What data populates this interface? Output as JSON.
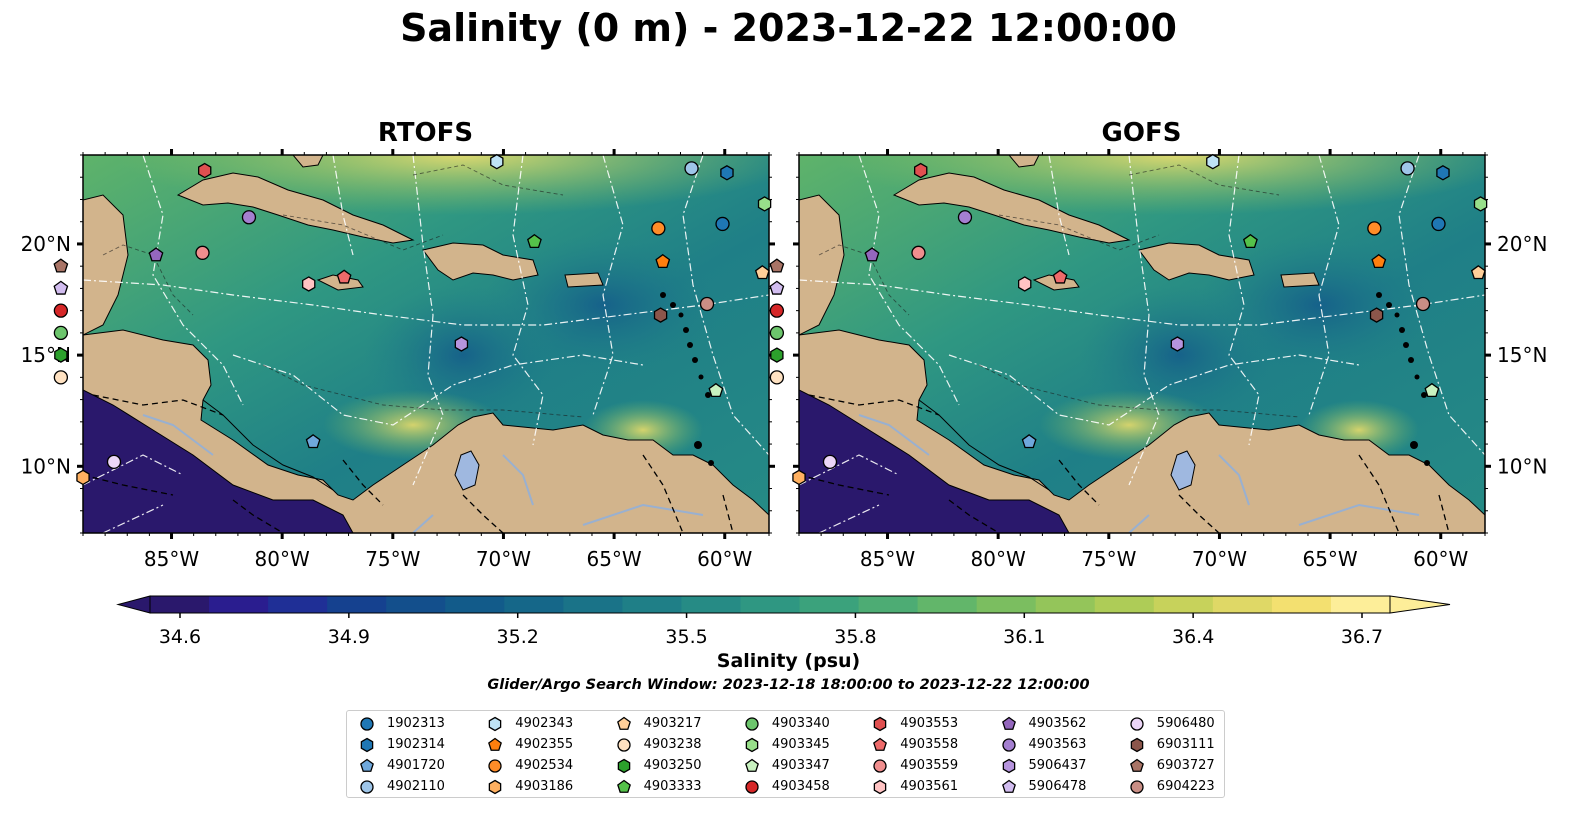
{
  "title": "Salinity (0 m) - 2023-12-22 12:00:00",
  "panels": [
    {
      "title": "RTOFS"
    },
    {
      "title": "GOFS"
    }
  ],
  "axes": {
    "lon_ticks": [
      -85,
      -80,
      -75,
      -70,
      -65,
      -60
    ],
    "lon_tick_labels": [
      "85°W",
      "80°W",
      "75°W",
      "70°W",
      "65°W",
      "60°W"
    ],
    "lat_ticks": [
      10,
      15,
      20
    ],
    "lat_tick_labels": [
      "10°N",
      "15°N",
      "20°N"
    ],
    "lon_range": [
      -89,
      -58
    ],
    "lat_range": [
      7,
      24
    ]
  },
  "colorbar": {
    "label": "Salinity (psu)",
    "ticks": [
      "34.6",
      "34.9",
      "35.2",
      "35.5",
      "35.8",
      "36.1",
      "36.4",
      "36.7"
    ],
    "range": [
      34.6,
      36.7
    ],
    "extend": "both",
    "colormap": "haline",
    "colors": [
      "#2a186c",
      "#2a1d8f",
      "#1f2f96",
      "#15418f",
      "#134f8c",
      "#125b8a",
      "#156789",
      "#1a7388",
      "#1f7f87",
      "#268b85",
      "#2f9782",
      "#3ba27c",
      "#4dac74",
      "#62b66a",
      "#7bbe60",
      "#94c55a",
      "#aecc57",
      "#c7d25b",
      "#dfd866",
      "#f3e070",
      "#fdee99"
    ]
  },
  "search_window": "Glider/Argo Search Window: 2023-12-18 18:00:00 to 2023-12-22 12:00:00",
  "chart_data": {
    "type": "map",
    "variable": "Salinity",
    "depth": "0 m",
    "units": "psu",
    "floats": [
      {
        "id": "1902313",
        "marker": "circle",
        "color": "#1f77b4",
        "lon": -60.1,
        "lat": 20.9
      },
      {
        "id": "1902314",
        "marker": "hexagon",
        "color": "#1f77b4",
        "lon": -59.9,
        "lat": 23.2
      },
      {
        "id": "4901720",
        "marker": "pentagon",
        "color": "#6fa8dc",
        "lon": -78.6,
        "lat": 11.1
      },
      {
        "id": "4902110",
        "marker": "circle",
        "color": "#9ec5e8",
        "lon": -61.5,
        "lat": 23.4
      },
      {
        "id": "4902343",
        "marker": "hexagon",
        "color": "#bfe3f5",
        "lon": -70.3,
        "lat": 23.7
      },
      {
        "id": "4902355",
        "marker": "pentagon",
        "color": "#ff7f0e",
        "lon": -62.8,
        "lat": 19.2
      },
      {
        "id": "4902534",
        "marker": "circle",
        "color": "#ff8c28",
        "lon": -63.0,
        "lat": 20.7
      },
      {
        "id": "4903186",
        "marker": "hexagon",
        "color": "#ffb060",
        "lon": -89.0,
        "lat": 9.5
      },
      {
        "id": "4903217",
        "marker": "pentagon",
        "color": "#ffcf99",
        "lon": -58.3,
        "lat": 18.7
      },
      {
        "id": "4903238",
        "marker": "circle",
        "color": "#ffe2c2",
        "lon": -90.0,
        "lat": 14.0
      },
      {
        "id": "4903250",
        "marker": "hexagon",
        "color": "#2ca02c",
        "lon": -90.0,
        "lat": 15.0
      },
      {
        "id": "4903333",
        "marker": "pentagon",
        "color": "#55c24a",
        "lon": -68.6,
        "lat": 20.1
      },
      {
        "id": "4903340",
        "marker": "circle",
        "color": "#6cc56c",
        "lon": -90.0,
        "lat": 16.0
      },
      {
        "id": "4903345",
        "marker": "hexagon",
        "color": "#98df8a",
        "lon": -58.2,
        "lat": 21.8
      },
      {
        "id": "4903347",
        "marker": "pentagon",
        "color": "#c9f2c0",
        "lon": -60.4,
        "lat": 13.4
      },
      {
        "id": "4903458",
        "marker": "circle",
        "color": "#d62728",
        "lon": -90.0,
        "lat": 17.0
      },
      {
        "id": "4903553",
        "marker": "hexagon",
        "color": "#e05050",
        "lon": -83.5,
        "lat": 23.3
      },
      {
        "id": "4903558",
        "marker": "pentagon",
        "color": "#ee6a6a",
        "lon": -77.2,
        "lat": 18.5
      },
      {
        "id": "4903559",
        "marker": "circle",
        "color": "#f08e8e",
        "lon": -83.6,
        "lat": 19.6
      },
      {
        "id": "4903561",
        "marker": "hexagon",
        "color": "#ffc3c3",
        "lon": -78.8,
        "lat": 18.2
      },
      {
        "id": "4903562",
        "marker": "pentagon",
        "color": "#9467bd",
        "lon": -85.7,
        "lat": 19.5
      },
      {
        "id": "4903563",
        "marker": "circle",
        "color": "#a47fd0",
        "lon": -81.5,
        "lat": 21.2
      },
      {
        "id": "5906437",
        "marker": "hexagon",
        "color": "#b694dd",
        "lon": -71.9,
        "lat": 15.5
      },
      {
        "id": "5906478",
        "marker": "pentagon",
        "color": "#d2bdf0",
        "lon": -90.0,
        "lat": 18.0
      },
      {
        "id": "5906480",
        "marker": "circle",
        "color": "#ecd6f7",
        "lon": -87.6,
        "lat": 10.2
      },
      {
        "id": "6903111",
        "marker": "hexagon",
        "color": "#8c564b",
        "lon": -62.9,
        "lat": 16.8
      },
      {
        "id": "6903727",
        "marker": "pentagon",
        "color": "#a97466",
        "lon": -90.0,
        "lat": 19.0
      },
      {
        "id": "6904223",
        "marker": "circle",
        "color": "#c98e85",
        "lon": -60.8,
        "lat": 17.3
      }
    ]
  }
}
